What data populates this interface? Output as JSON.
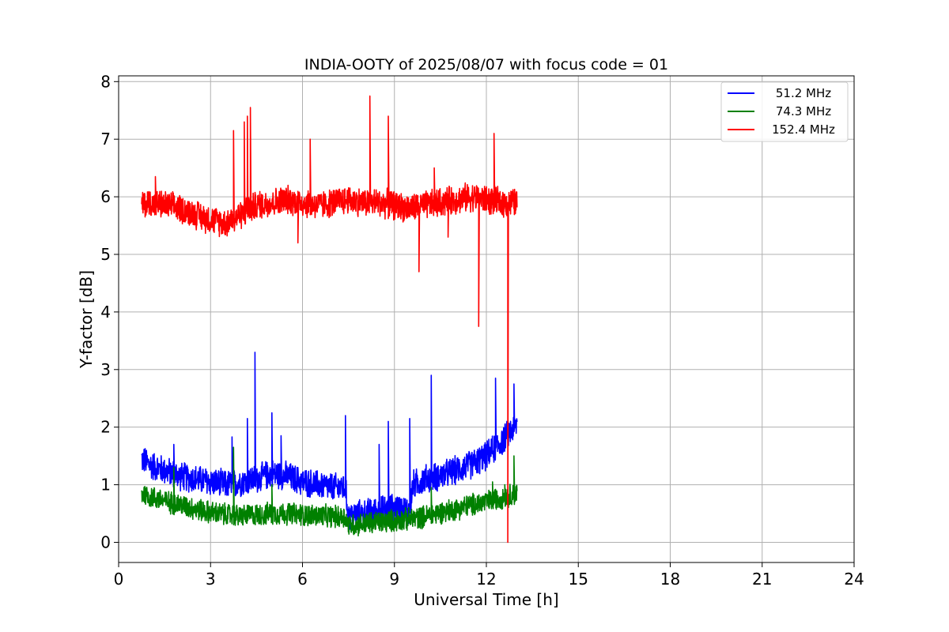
{
  "chart_data": {
    "type": "line",
    "title": "INDIA-OOTY of 2025/08/07 with focus code = 01",
    "xlabel": "Universal Time [h]",
    "ylabel": "Y-factor [dB]",
    "xlim": [
      0,
      24
    ],
    "ylim": [
      -0.35,
      8.1
    ],
    "xticks": [
      0,
      3,
      6,
      9,
      12,
      15,
      18,
      21,
      24
    ],
    "yticks": [
      0,
      1,
      2,
      3,
      4,
      5,
      6,
      7,
      8
    ],
    "grid": true,
    "legend_position": "top-right",
    "series": [
      {
        "name": " 51.2 MHz",
        "color": "#0000ff",
        "x": [
          0.75,
          1.0,
          1.5,
          2.0,
          2.5,
          3.0,
          3.5,
          4.0,
          4.5,
          5.0,
          5.5,
          6.0,
          6.5,
          7.0,
          7.4,
          7.5,
          8.0,
          8.5,
          9.0,
          9.5,
          9.6,
          10.0,
          10.5,
          11.0,
          11.5,
          12.0,
          12.5,
          13.0
        ],
        "values": [
          1.45,
          1.35,
          1.25,
          1.15,
          1.1,
          1.05,
          1.0,
          1.05,
          1.1,
          1.2,
          1.15,
          1.05,
          1.0,
          0.95,
          0.95,
          0.45,
          0.5,
          0.55,
          0.6,
          0.55,
          1.0,
          1.1,
          1.15,
          1.25,
          1.35,
          1.5,
          1.75,
          2.05
        ],
        "spikes": [
          {
            "x": 1.8,
            "y": 1.7
          },
          {
            "x": 3.7,
            "y": 1.83
          },
          {
            "x": 4.2,
            "y": 2.15
          },
          {
            "x": 4.45,
            "y": 3.3
          },
          {
            "x": 5.0,
            "y": 2.25
          },
          {
            "x": 5.3,
            "y": 1.85
          },
          {
            "x": 7.4,
            "y": 2.2
          },
          {
            "x": 8.5,
            "y": 1.7
          },
          {
            "x": 8.8,
            "y": 2.1
          },
          {
            "x": 9.5,
            "y": 2.15
          },
          {
            "x": 10.2,
            "y": 2.9
          },
          {
            "x": 12.3,
            "y": 2.85
          },
          {
            "x": 12.9,
            "y": 2.75
          }
        ]
      },
      {
        "name": " 74.3 MHz",
        "color": "#008000",
        "x": [
          0.75,
          1.0,
          1.5,
          2.0,
          2.5,
          3.0,
          3.5,
          4.0,
          4.5,
          5.0,
          5.5,
          6.0,
          6.5,
          7.0,
          7.4,
          7.5,
          8.0,
          8.5,
          9.0,
          9.5,
          10.0,
          10.5,
          11.0,
          11.5,
          12.0,
          12.5,
          13.0
        ],
        "values": [
          0.85,
          0.8,
          0.72,
          0.65,
          0.58,
          0.52,
          0.48,
          0.46,
          0.48,
          0.5,
          0.5,
          0.48,
          0.46,
          0.45,
          0.44,
          0.3,
          0.32,
          0.35,
          0.38,
          0.4,
          0.45,
          0.52,
          0.58,
          0.65,
          0.7,
          0.78,
          0.85
        ],
        "spikes": [
          {
            "x": 1.8,
            "y": 1.3
          },
          {
            "x": 3.75,
            "y": 1.65
          },
          {
            "x": 5.0,
            "y": 1.0
          },
          {
            "x": 10.2,
            "y": 0.95
          },
          {
            "x": 12.2,
            "y": 1.05
          },
          {
            "x": 12.6,
            "y": 1.0
          },
          {
            "x": 12.9,
            "y": 1.5
          }
        ]
      },
      {
        "name": "152.4 MHz",
        "color": "#ff0000",
        "x": [
          0.75,
          1.0,
          1.5,
          2.0,
          2.5,
          3.0,
          3.5,
          4.0,
          4.5,
          5.0,
          5.5,
          6.0,
          6.5,
          7.0,
          7.5,
          8.0,
          8.5,
          9.0,
          9.5,
          10.0,
          10.5,
          11.0,
          11.5,
          12.0,
          12.5,
          13.0
        ],
        "values": [
          5.85,
          5.9,
          5.85,
          5.8,
          5.7,
          5.6,
          5.55,
          5.7,
          5.85,
          5.9,
          5.95,
          5.9,
          5.85,
          5.9,
          5.95,
          5.9,
          5.9,
          5.85,
          5.8,
          5.85,
          5.9,
          5.95,
          6.0,
          5.95,
          5.9,
          5.9
        ],
        "spikes": [
          {
            "x": 1.2,
            "y": 6.35
          },
          {
            "x": 3.75,
            "y": 7.15
          },
          {
            "x": 4.1,
            "y": 7.3
          },
          {
            "x": 4.2,
            "y": 7.4
          },
          {
            "x": 4.3,
            "y": 7.55
          },
          {
            "x": 6.25,
            "y": 7.0
          },
          {
            "x": 8.2,
            "y": 7.75
          },
          {
            "x": 8.8,
            "y": 7.4
          },
          {
            "x": 10.3,
            "y": 6.5
          },
          {
            "x": 12.25,
            "y": 7.1
          }
        ],
        "dips": [
          {
            "x": 5.85,
            "y": 5.2
          },
          {
            "x": 9.8,
            "y": 4.7
          },
          {
            "x": 10.75,
            "y": 5.3
          },
          {
            "x": 11.75,
            "y": 3.75
          },
          {
            "x": 12.7,
            "y": 0.0
          }
        ]
      }
    ]
  }
}
